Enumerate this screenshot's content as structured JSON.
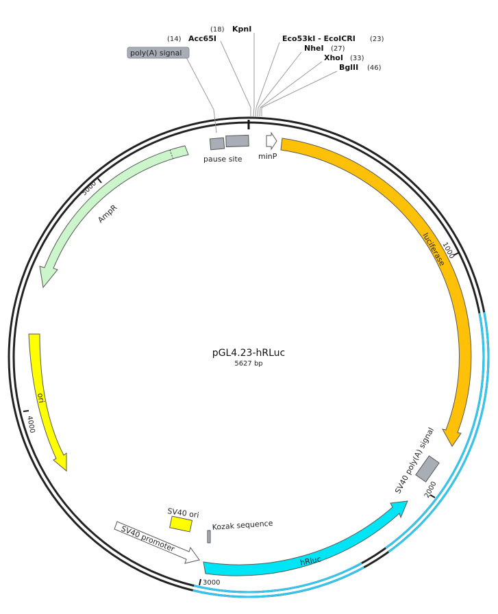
{
  "plasmid": {
    "name": "pGL4.23-hRLuc",
    "length_label": "5627 bp",
    "length_bp": 5627
  },
  "ticks": [
    {
      "bp": 1000,
      "label": "1000"
    },
    {
      "bp": 2000,
      "label": "2000"
    },
    {
      "bp": 3000,
      "label": "3000"
    },
    {
      "bp": 4000,
      "label": "4000"
    },
    {
      "bp": 5000,
      "label": "5000"
    }
  ],
  "features": [
    {
      "id": "pause-site-a",
      "label": "pause site",
      "type": "box",
      "color": "#a9adb6"
    },
    {
      "id": "pause-site-b",
      "label": "",
      "type": "box",
      "color": "#a9adb6"
    },
    {
      "id": "minp",
      "label": "minP",
      "type": "arrow",
      "color": "#ffffff"
    },
    {
      "id": "luciferase",
      "label": "luciferase",
      "type": "arrow",
      "color": "#ffc107"
    },
    {
      "id": "sv40-polya",
      "label": "SV40 poly(A) signal",
      "type": "box",
      "color": "#a9adb6"
    },
    {
      "id": "hrluc",
      "label": "hRluc",
      "type": "arrow",
      "color": "#00e5f5"
    },
    {
      "id": "kozak",
      "label": "Kozak sequence",
      "type": "box",
      "color": "#a9adb6"
    },
    {
      "id": "sv40-ori",
      "label": "SV40 ori",
      "type": "box",
      "color": "#ffff00"
    },
    {
      "id": "sv40-promoter",
      "label": "SV40 promoter",
      "type": "arrow",
      "color": "#ffffff"
    },
    {
      "id": "ori",
      "label": "ori",
      "type": "arrow",
      "color": "#ffff00"
    },
    {
      "id": "ampr",
      "label": "AmpR",
      "type": "arrow",
      "color": "#ccf5cc"
    }
  ],
  "sites": [
    {
      "id": "acc65i",
      "name": "Acc65I",
      "position": "(14)"
    },
    {
      "id": "kpni",
      "name": "KpnI",
      "position": "(18)"
    },
    {
      "id": "eco53ki",
      "name": "Eco53kI - EcoICRI",
      "position": "(23)"
    },
    {
      "id": "nhei",
      "name": "NheI",
      "position": "(27)"
    },
    {
      "id": "xhoi",
      "name": "XhoI",
      "position": "(33)"
    },
    {
      "id": "bglii",
      "name": "BglII",
      "position": "(46)"
    }
  ],
  "callouts": {
    "polya_label": "poly(A) signal"
  },
  "colors": {
    "backbone": "#222222",
    "highlight_strand": "#33c6ee"
  }
}
